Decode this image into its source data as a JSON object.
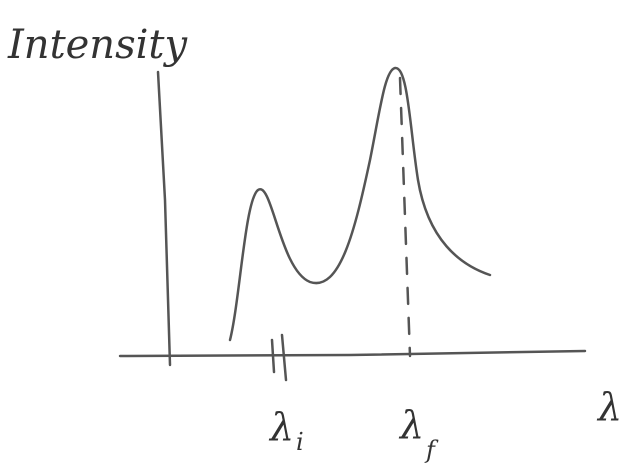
{
  "axes": {
    "y_label": "Intensity",
    "x_label": "λ"
  },
  "markers": [
    {
      "symbol": "λ",
      "subscript": "i"
    },
    {
      "symbol": "λ",
      "subscript": "f"
    }
  ]
}
